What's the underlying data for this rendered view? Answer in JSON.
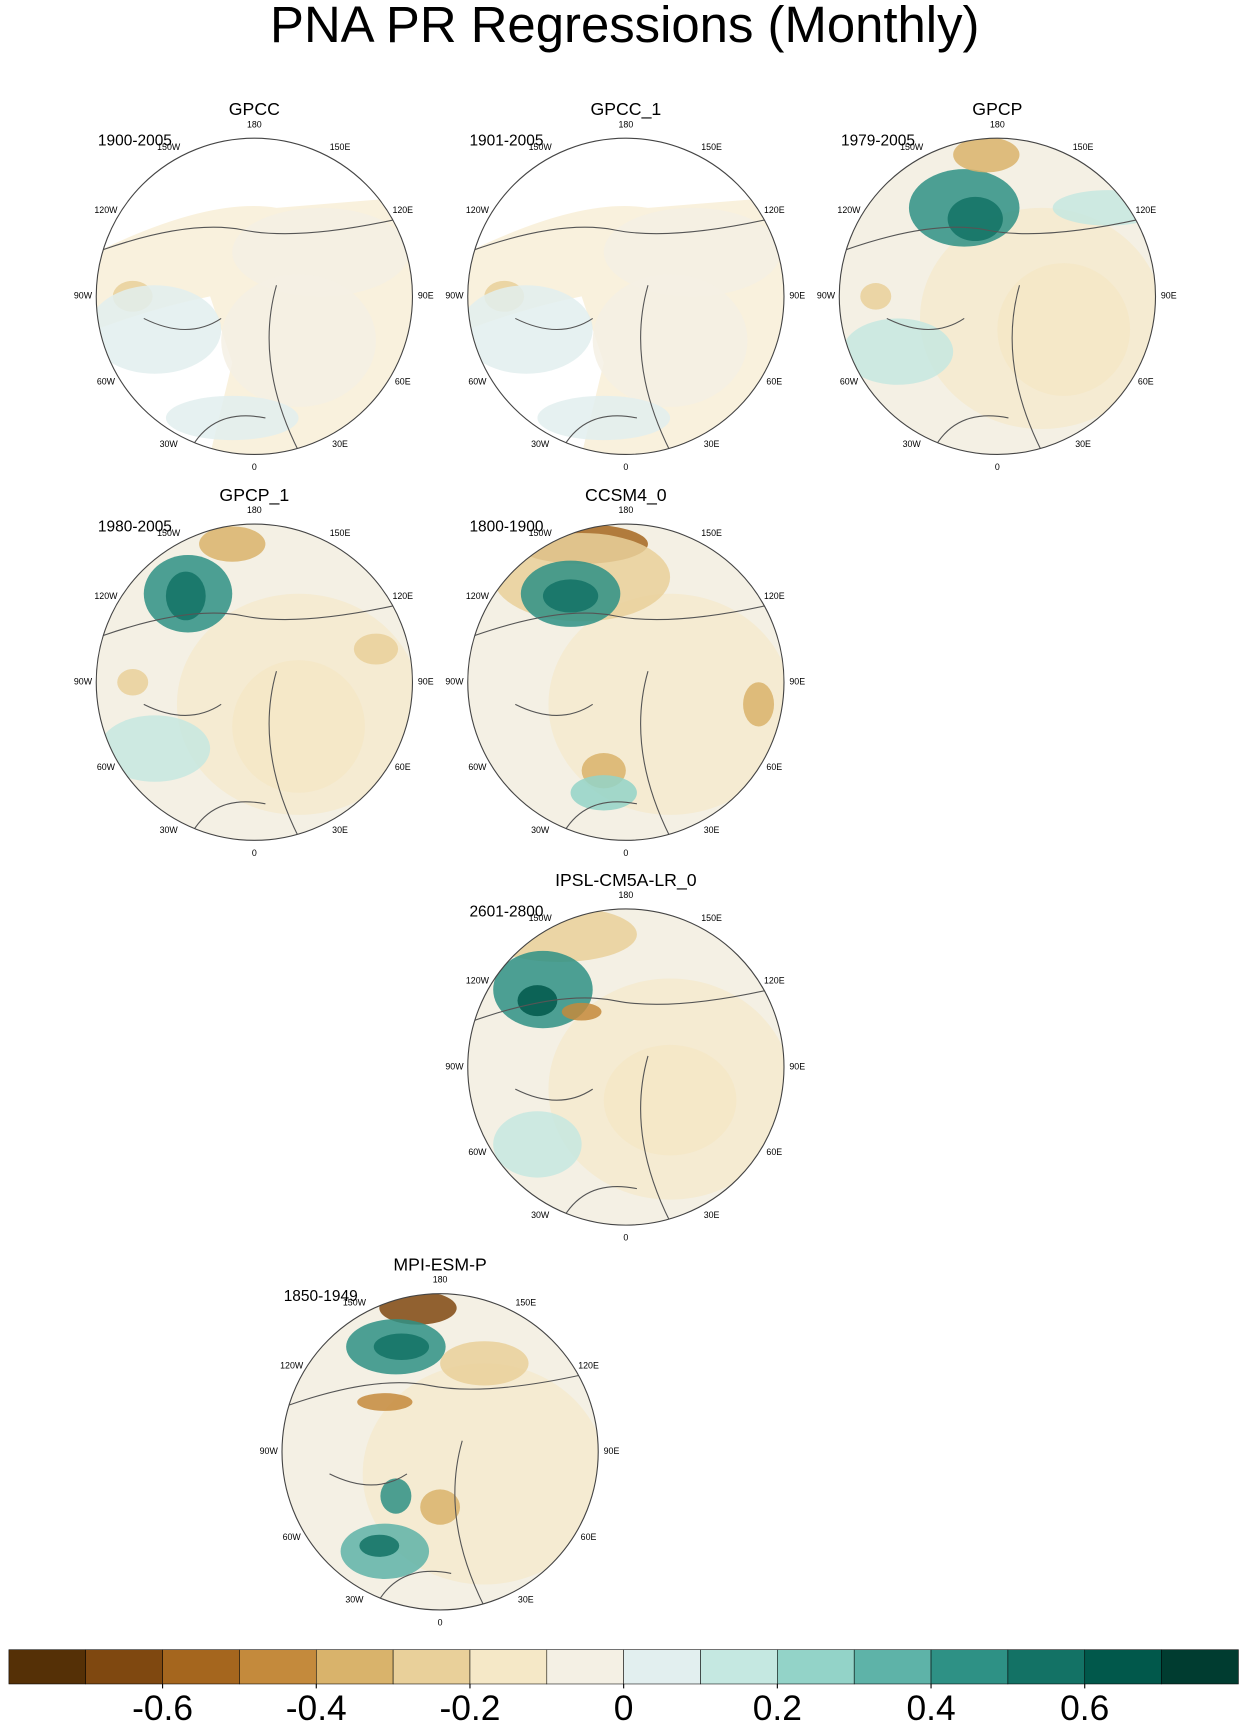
{
  "title": "PNA PR Regressions (Monthly)",
  "map_labels": [
    "180",
    "150E",
    "120E",
    "90E",
    "60E",
    "30E",
    "0",
    "30W",
    "60W",
    "90W",
    "120W",
    "150W"
  ],
  "panels": [
    {
      "name": "GPCC",
      "period": "1900-2005"
    },
    {
      "name": "GPCC_1",
      "period": "1901-2005"
    },
    {
      "name": "GPCP",
      "period": "1979-2005"
    },
    {
      "name": "GPCP_1",
      "period": "1980-2005"
    },
    {
      "name": "CCSM4_0",
      "period": "1800-1900"
    },
    {
      "name": "IPSL-CM5A-LR_0",
      "period": "2601-2800"
    },
    {
      "name": "MPI-ESM-P",
      "period": "1850-1949"
    }
  ],
  "colorbar": {
    "lim": [
      -0.8,
      0.8
    ],
    "colors": [
      "#553006",
      "#7f4810",
      "#a5661e",
      "#c48a3c",
      "#d9b36b",
      "#e9d09a",
      "#f5e8c7",
      "#f4f0e4",
      "#e2efef",
      "#c5e8e1",
      "#93d3c8",
      "#5eb3a8",
      "#2e9185",
      "#137265",
      "#01584b",
      "#003c30"
    ],
    "ticks": [
      -0.6,
      -0.4,
      -0.2,
      0,
      0.2,
      0.4,
      0.6
    ]
  }
}
